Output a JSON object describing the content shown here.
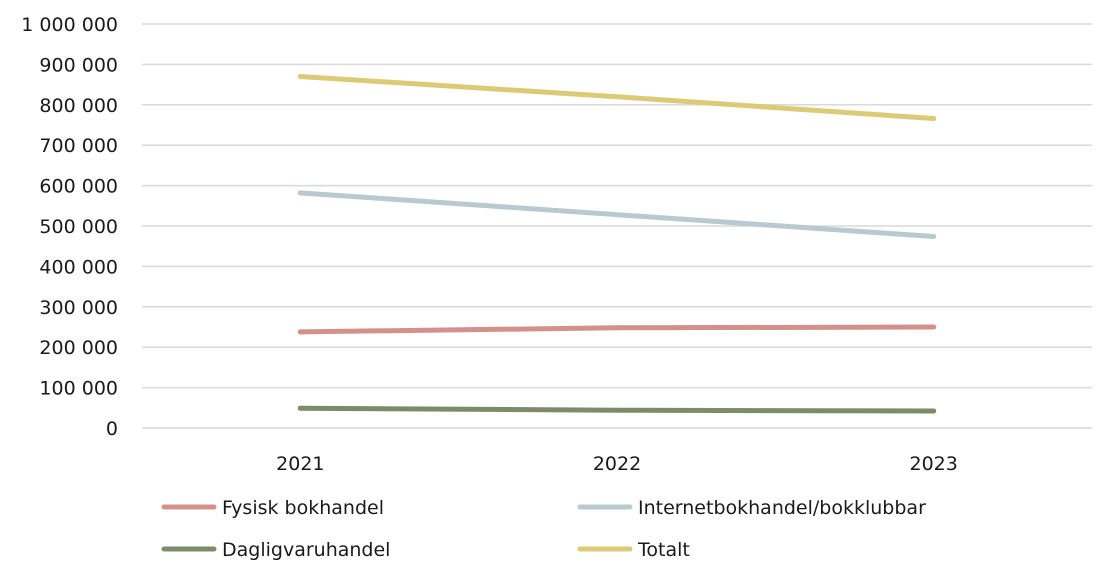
{
  "chart_data": {
    "type": "line",
    "title": "",
    "xlabel": "",
    "ylabel": "",
    "categories": [
      "2021",
      "2022",
      "2023"
    ],
    "ylim": [
      0,
      1000000
    ],
    "yticks": [
      0,
      100000,
      200000,
      300000,
      400000,
      500000,
      600000,
      700000,
      800000,
      900000,
      1000000
    ],
    "ytick_labels": [
      "0",
      "100 000",
      "200 000",
      "300 000",
      "400 000",
      "500 000",
      "600 000",
      "700 000",
      "800 000",
      "900 000",
      "1 000 000"
    ],
    "grid": true,
    "legend_position": "bottom",
    "series": [
      {
        "name": "Fysisk bokhandel",
        "color": "#d4908a",
        "values": [
          238000,
          248000,
          250000
        ]
      },
      {
        "name": "Internetbokhandel/bokklubbar",
        "color": "#b8c9cf",
        "values": [
          582000,
          528000,
          474000
        ]
      },
      {
        "name": "Dagligvaruhandel",
        "color": "#7e8b6a",
        "values": [
          49000,
          44000,
          42000
        ]
      },
      {
        "name": "Totalt",
        "color": "#dccb76",
        "values": [
          870000,
          820000,
          766000
        ]
      }
    ]
  }
}
